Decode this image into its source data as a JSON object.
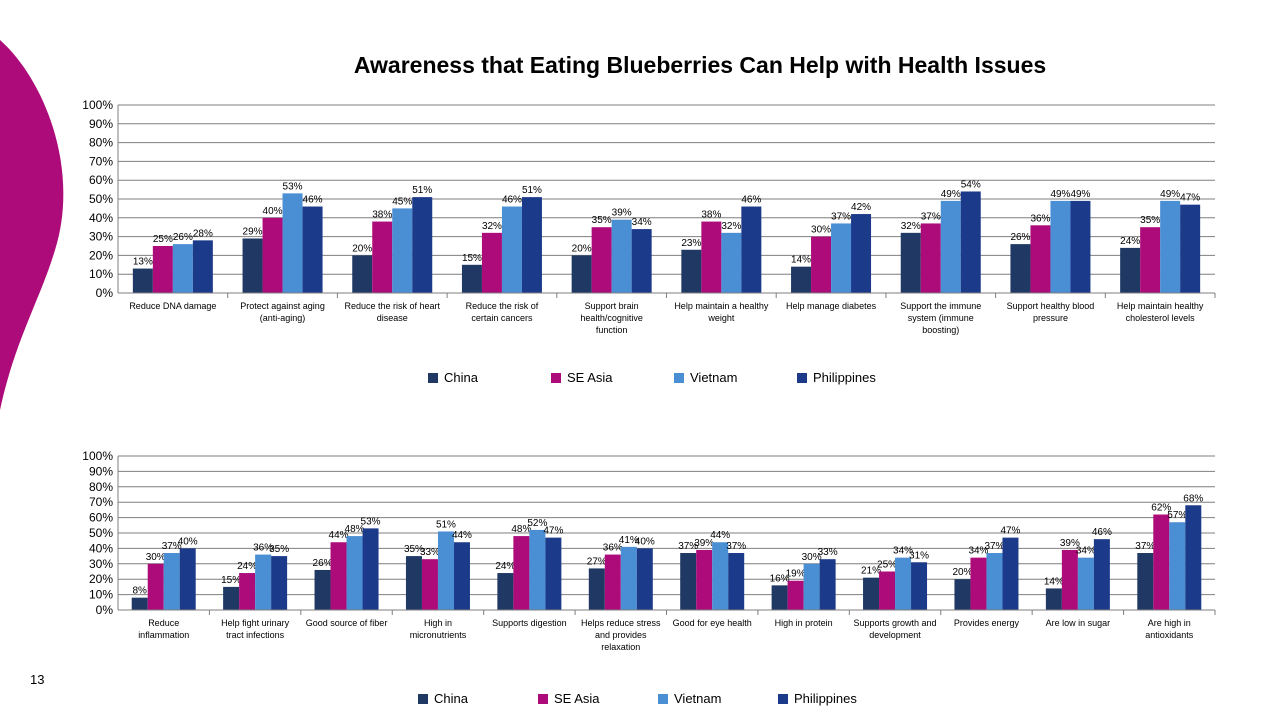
{
  "page": {
    "title": "Awareness that Eating Blueberries Can Help with Health Issues",
    "page_number": "13"
  },
  "colors": {
    "China": "#1f3864",
    "SE Asia": "#ad0b7a",
    "Vietnam": "#4a8fd4",
    "Philippines": "#1c3a8a",
    "decor": "#ad0b7a"
  },
  "legend": [
    "China",
    "SE Asia",
    "Vietnam",
    "Philippines"
  ],
  "chart_data": [
    {
      "type": "bar",
      "ylim": [
        0,
        100
      ],
      "yticks": [
        "0%",
        "10%",
        "20%",
        "30%",
        "40%",
        "50%",
        "60%",
        "70%",
        "80%",
        "90%",
        "100%"
      ],
      "categories": [
        [
          "Reduce DNA damage"
        ],
        [
          "Protect against aging",
          "(anti-aging)"
        ],
        [
          "Reduce the risk of heart",
          "disease"
        ],
        [
          "Reduce the risk of",
          "certain cancers"
        ],
        [
          "Support brain",
          "health/cognitive",
          "function"
        ],
        [
          "Help maintain a healthy",
          "weight"
        ],
        [
          "Help manage diabetes"
        ],
        [
          "Support the immune",
          "system (immune",
          "boosting)"
        ],
        [
          "Support healthy blood",
          "pressure"
        ],
        [
          "Help maintain healthy",
          "cholesterol levels"
        ]
      ],
      "series": [
        {
          "name": "China",
          "values": [
            13,
            29,
            20,
            15,
            20,
            23,
            14,
            32,
            26,
            24
          ]
        },
        {
          "name": "SE Asia",
          "values": [
            25,
            40,
            38,
            32,
            35,
            38,
            30,
            37,
            36,
            35
          ]
        },
        {
          "name": "Vietnam",
          "values": [
            26,
            53,
            45,
            46,
            39,
            32,
            37,
            49,
            49,
            49
          ]
        },
        {
          "name": "Philippines",
          "values": [
            28,
            46,
            51,
            51,
            34,
            46,
            42,
            54,
            49,
            47
          ]
        }
      ],
      "legend_position": "bottom"
    },
    {
      "type": "bar",
      "ylim": [
        0,
        100
      ],
      "yticks": [
        "0%",
        "10%",
        "20%",
        "30%",
        "40%",
        "50%",
        "60%",
        "70%",
        "80%",
        "90%",
        "100%"
      ],
      "categories": [
        [
          "Reduce",
          "inflammation"
        ],
        [
          "Help fight urinary",
          "tract infections"
        ],
        [
          "Good source of fiber"
        ],
        [
          "High in",
          "micronutrients"
        ],
        [
          "Supports digestion"
        ],
        [
          "Helps reduce stress",
          "and provides",
          "relaxation"
        ],
        [
          "Good for eye health"
        ],
        [
          "High in protein"
        ],
        [
          "Supports growth and",
          "development"
        ],
        [
          "Provides energy"
        ],
        [
          "Are low in sugar"
        ],
        [
          "Are high in",
          "antioxidants"
        ]
      ],
      "series": [
        {
          "name": "China",
          "values": [
            8,
            15,
            26,
            35,
            24,
            27,
            37,
            16,
            21,
            20,
            14,
            37
          ]
        },
        {
          "name": "SE Asia",
          "values": [
            30,
            24,
            44,
            33,
            48,
            36,
            39,
            19,
            25,
            34,
            39,
            62
          ]
        },
        {
          "name": "Vietnam",
          "values": [
            37,
            36,
            48,
            51,
            52,
            41,
            44,
            30,
            34,
            37,
            34,
            57
          ]
        },
        {
          "name": "Philippines",
          "values": [
            40,
            35,
            53,
            44,
            47,
            40,
            37,
            33,
            31,
            47,
            46,
            68
          ]
        }
      ],
      "legend_position": "bottom"
    }
  ]
}
